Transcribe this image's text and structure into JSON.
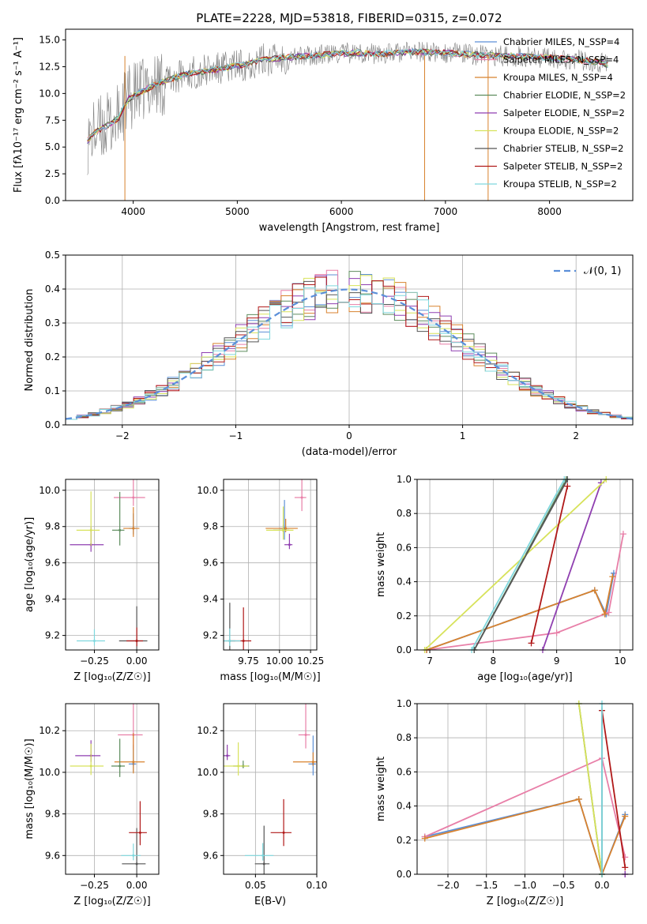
{
  "figure_title": "PLATE=2228, MJD=53818, FIBERID=0315, z=0.072",
  "colors": {
    "Chabrier MILES": "#5c8fd6",
    "Salpeter MILES": "#e87fa8",
    "Kroupa MILES": "#d8822e",
    "Chabrier ELODIE": "#5e8c5e",
    "Salpeter ELODIE": "#8f3fb0",
    "Kroupa ELODIE": "#d7e25a",
    "Chabrier STELIB": "#555555",
    "Salpeter STELIB": "#b01818",
    "Kroupa STELIB": "#7fd8de",
    "observed": "#808080",
    "normal_curve": "#5b8fd9"
  },
  "chart_data": [
    {
      "id": "spectrum",
      "type": "line",
      "title": "PLATE=2228, MJD=53818, FIBERID=0315, z=0.072",
      "xlabel": "wavelength [Angstrom, rest frame]",
      "ylabel": "Flux [fλ10⁻¹⁷ erg cm⁻² s⁻¹ A⁻¹]",
      "xlim": [
        3350,
        8800
      ],
      "ylim": [
        0,
        16
      ],
      "xticks": [
        "4000",
        "5000",
        "6000",
        "7000",
        "8000"
      ],
      "yticks": [
        "0.0",
        "2.5",
        "5.0",
        "7.5",
        "10.0",
        "12.5",
        "15.0"
      ],
      "continuum": {
        "x": [
          3560,
          3650,
          3750,
          3850,
          3950,
          4050,
          4200,
          4350,
          4500,
          4700,
          4900,
          5100,
          5300,
          5500,
          5800,
          6100,
          6400,
          6700,
          7000,
          7300,
          7600,
          7900,
          8200,
          8500,
          8560
        ],
        "y": [
          5.6,
          6.5,
          7.0,
          7.6,
          9.5,
          10.0,
          10.8,
          11.3,
          11.8,
          12.1,
          12.4,
          12.8,
          13.2,
          13.4,
          13.6,
          13.8,
          13.7,
          13.9,
          13.8,
          13.6,
          13.5,
          13.4,
          13.2,
          12.9,
          12.7
        ]
      },
      "legend": [
        "Chabrier MILES, N_SSP=4",
        "Salpeter MILES, N_SSP=4",
        "Kroupa MILES, N_SSP=4",
        "Chabrier ELODIE, N_SSP=2",
        "Salpeter ELODIE, N_SSP=2",
        "Kroupa ELODIE, N_SSP=2",
        "Chabrier STELIB, N_SSP=2",
        "Salpeter STELIB, N_SSP=2",
        "Kroupa STELIB, N_SSP=2"
      ],
      "legend_position": "right"
    },
    {
      "id": "residuals",
      "type": "step",
      "xlabel": "(data-model)/error",
      "ylabel": "Normed distribution",
      "xlim": [
        -2.5,
        2.5
      ],
      "ylim": [
        0,
        0.5
      ],
      "xticks": [
        "−2",
        "−1",
        "0",
        "1",
        "2"
      ],
      "yticks": [
        "0.0",
        "0.1",
        "0.2",
        "0.3",
        "0.4",
        "0.5"
      ],
      "bin_width": 0.1,
      "reference_curve": "Normal(0,1)",
      "legend": [
        "𝒩(0, 1)"
      ],
      "legend_position": "top-right",
      "grid": true
    },
    {
      "id": "age_vs_Z",
      "type": "errorbar",
      "xlabel": "Z [log₁₀(Z/Z☉)]",
      "ylabel": "age  [log₁₀(age/yr)]",
      "xlim": [
        -0.42,
        0.13
      ],
      "ylim": [
        9.12,
        10.06
      ],
      "xticks": [
        "−0.25",
        "0.00"
      ],
      "yticks": [
        "9.2",
        "9.4",
        "9.6",
        "9.8",
        "10.0"
      ],
      "grid": true,
      "points": [
        {
          "series": "Chabrier MILES",
          "x": -0.02,
          "y": 9.79
        },
        {
          "series": "Salpeter MILES",
          "x": -0.02,
          "y": 9.96
        },
        {
          "series": "Kroupa MILES",
          "x": -0.02,
          "y": 9.79
        },
        {
          "series": "Chabrier ELODIE",
          "x": -0.1,
          "y": 9.78
        },
        {
          "series": "Salpeter ELODIE",
          "x": -0.27,
          "y": 9.7
        },
        {
          "series": "Kroupa ELODIE",
          "x": -0.27,
          "y": 9.78
        },
        {
          "series": "Chabrier STELIB",
          "x": 0.0,
          "y": 9.17
        },
        {
          "series": "Salpeter STELIB",
          "x": 0.0,
          "y": 9.17
        },
        {
          "series": "Kroupa STELIB",
          "x": -0.25,
          "y": 9.17
        }
      ]
    },
    {
      "id": "age_vs_mass",
      "type": "errorbar",
      "xlabel": "mass [log₁₀(M/M☉)]",
      "ylabel": "",
      "xlim": [
        9.55,
        10.3
      ],
      "ylim": [
        9.12,
        10.06
      ],
      "xticks": [
        "9.75",
        "10.00",
        "10.25"
      ],
      "yticks": [
        "9.2",
        "9.4",
        "9.6",
        "9.8",
        "10.0"
      ],
      "grid": true,
      "points": [
        {
          "series": "Chabrier MILES",
          "x": 10.04,
          "y": 9.79
        },
        {
          "series": "Salpeter MILES",
          "x": 10.18,
          "y": 9.96
        },
        {
          "series": "Kroupa MILES",
          "x": 10.05,
          "y": 9.79
        },
        {
          "series": "Chabrier ELODIE",
          "x": 10.03,
          "y": 9.78
        },
        {
          "series": "Salpeter ELODIE",
          "x": 10.08,
          "y": 9.7
        },
        {
          "series": "Kroupa ELODIE",
          "x": 10.03,
          "y": 9.78
        },
        {
          "series": "Chabrier STELIB",
          "x": 9.6,
          "y": 9.17
        },
        {
          "series": "Salpeter STELIB",
          "x": 9.71,
          "y": 9.17
        },
        {
          "series": "Kroupa STELIB",
          "x": 9.6,
          "y": 9.17
        }
      ]
    },
    {
      "id": "massweight_vs_age",
      "type": "line",
      "xlabel": "age  [log₁₀(age/yr)]",
      "ylabel": "mass weight",
      "xlim": [
        6.8,
        10.2
      ],
      "ylim": [
        0,
        1
      ],
      "xticks": [
        "7",
        "8",
        "9",
        "10"
      ],
      "yticks": [
        "0.0",
        "0.2",
        "0.4",
        "0.6",
        "0.8",
        "1.0"
      ],
      "grid": true,
      "series": [
        {
          "series": "Chabrier MILES",
          "x": [
            6.95,
            9.6,
            9.78,
            9.9
          ],
          "y": [
            0.0,
            0.35,
            0.21,
            0.45
          ]
        },
        {
          "series": "Salpeter MILES",
          "x": [
            6.95,
            9.0,
            9.82,
            10.05
          ],
          "y": [
            0.0,
            0.1,
            0.22,
            0.68
          ]
        },
        {
          "series": "Kroupa MILES",
          "x": [
            6.95,
            9.6,
            9.76,
            9.88
          ],
          "y": [
            0.0,
            0.35,
            0.21,
            0.43
          ]
        },
        {
          "series": "Chabrier ELODIE",
          "x": [
            7.7,
            9.15
          ],
          "y": [
            0.0,
            1.0
          ]
        },
        {
          "series": "Salpeter ELODIE",
          "x": [
            8.78,
            9.7
          ],
          "y": [
            0.0,
            0.98
          ]
        },
        {
          "series": "Kroupa ELODIE",
          "x": [
            6.92,
            9.78
          ],
          "y": [
            0.0,
            1.0
          ]
        },
        {
          "series": "Chabrier STELIB",
          "x": [
            7.7,
            9.17
          ],
          "y": [
            0.0,
            1.0
          ]
        },
        {
          "series": "Salpeter STELIB",
          "x": [
            8.6,
            9.17
          ],
          "y": [
            0.04,
            0.96
          ]
        },
        {
          "series": "Kroupa STELIB",
          "x": [
            7.66,
            9.12
          ],
          "y": [
            0.0,
            1.0
          ]
        }
      ]
    },
    {
      "id": "mass_vs_Z",
      "type": "errorbar",
      "xlabel": "Z [log₁₀(Z/Z☉)]",
      "ylabel": "mass [log₁₀(M/M☉)]",
      "xlim": [
        -0.42,
        0.13
      ],
      "ylim": [
        9.51,
        10.33
      ],
      "xticks": [
        "−0.25",
        "0.00"
      ],
      "yticks": [
        "9.6",
        "9.8",
        "10.0",
        "10.2"
      ],
      "grid": true,
      "points": [
        {
          "series": "Chabrier MILES",
          "x": -0.02,
          "y": 10.04
        },
        {
          "series": "Salpeter MILES",
          "x": -0.02,
          "y": 10.18
        },
        {
          "series": "Kroupa MILES",
          "x": -0.02,
          "y": 10.05
        },
        {
          "series": "Chabrier ELODIE",
          "x": -0.1,
          "y": 10.03
        },
        {
          "series": "Salpeter ELODIE",
          "x": -0.27,
          "y": 10.08
        },
        {
          "series": "Kroupa ELODIE",
          "x": -0.27,
          "y": 10.03
        },
        {
          "series": "Chabrier STELIB",
          "x": 0.0,
          "y": 9.56
        },
        {
          "series": "Salpeter STELIB",
          "x": 0.02,
          "y": 9.71
        },
        {
          "series": "Kroupa STELIB",
          "x": -0.02,
          "y": 9.6
        }
      ]
    },
    {
      "id": "mass_vs_EBV",
      "type": "errorbar",
      "xlabel": "E(B-V)",
      "ylabel": "",
      "xlim": [
        0.024,
        0.1
      ],
      "ylim": [
        9.51,
        10.33
      ],
      "xticks": [
        "0.05",
        "0.10"
      ],
      "yticks": [
        "9.6",
        "9.8",
        "10.0",
        "10.2"
      ],
      "grid": true,
      "points": [
        {
          "series": "Chabrier MILES",
          "x": 0.097,
          "y": 10.04
        },
        {
          "series": "Salpeter MILES",
          "x": 0.091,
          "y": 10.18
        },
        {
          "series": "Kroupa MILES",
          "x": 0.097,
          "y": 10.05
        },
        {
          "series": "Chabrier ELODIE",
          "x": 0.04,
          "y": 10.03
        },
        {
          "series": "Salpeter ELODIE",
          "x": 0.027,
          "y": 10.08
        },
        {
          "series": "Kroupa ELODIE",
          "x": 0.036,
          "y": 10.03
        },
        {
          "series": "Chabrier STELIB",
          "x": 0.057,
          "y": 9.56
        },
        {
          "series": "Salpeter STELIB",
          "x": 0.073,
          "y": 9.71
        },
        {
          "series": "Kroupa STELIB",
          "x": 0.056,
          "y": 9.6
        }
      ]
    },
    {
      "id": "massweight_vs_Z",
      "type": "line",
      "xlabel": "Z [log₁₀(Z/Z☉)]",
      "ylabel": "mass weight",
      "xlim": [
        -2.4,
        0.4
      ],
      "ylim": [
        0,
        1
      ],
      "xticks": [
        "−2.0",
        "−1.5",
        "−1.0",
        "−0.5",
        "0.0"
      ],
      "yticks": [
        "0.0",
        "0.2",
        "0.4",
        "0.6",
        "0.8",
        "1.0"
      ],
      "grid": true,
      "series": [
        {
          "series": "Chabrier MILES",
          "x": [
            -2.3,
            -0.3,
            0.0,
            0.3
          ],
          "y": [
            0.22,
            0.44,
            0.0,
            0.35
          ]
        },
        {
          "series": "Salpeter MILES",
          "x": [
            -2.3,
            0.0,
            0.3
          ],
          "y": [
            0.22,
            0.68,
            0.1
          ]
        },
        {
          "series": "Kroupa MILES",
          "x": [
            -2.3,
            -0.3,
            0.0,
            0.3
          ],
          "y": [
            0.21,
            0.44,
            0.0,
            0.34
          ]
        },
        {
          "series": "Chabrier ELODIE",
          "x": [
            -0.3,
            0.0
          ],
          "y": [
            1.0,
            0.0
          ]
        },
        {
          "series": "Salpeter ELODIE",
          "x": [
            0.3,
            0.3
          ],
          "y": [
            0.0,
            0.0
          ]
        },
        {
          "series": "Kroupa ELODIE",
          "x": [
            -0.3,
            0.0
          ],
          "y": [
            1.0,
            0.0
          ]
        },
        {
          "series": "Chabrier STELIB",
          "x": [
            0.0,
            0.0
          ],
          "y": [
            0.96,
            0.0
          ]
        },
        {
          "series": "Salpeter STELIB",
          "x": [
            0.0,
            0.3
          ],
          "y": [
            0.96,
            0.04
          ]
        },
        {
          "series": "Kroupa STELIB",
          "x": [
            0.0,
            0.0
          ],
          "y": [
            1.0,
            0.0
          ]
        }
      ]
    }
  ]
}
